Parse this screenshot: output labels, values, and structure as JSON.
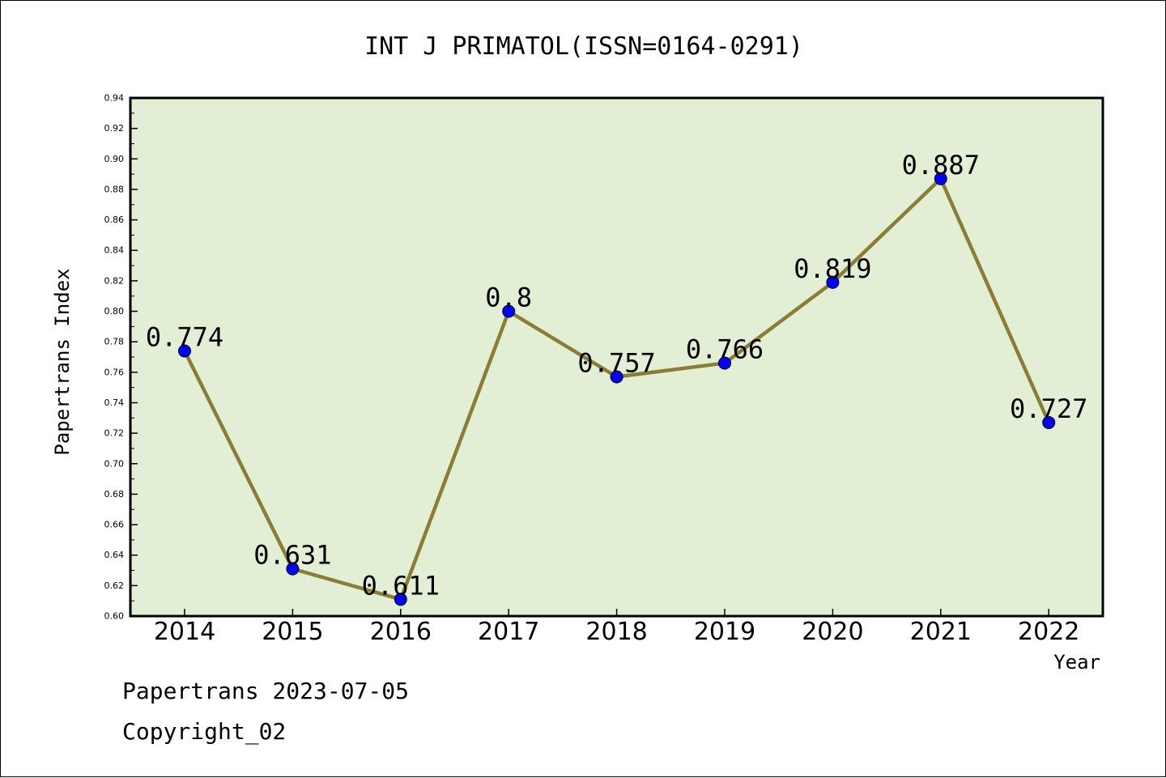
{
  "chart_data": {
    "type": "line",
    "title": "INT J PRIMATOL(ISSN=0164-0291)",
    "xlabel": "Year",
    "ylabel": "Papertrans Index",
    "x": [
      "2014",
      "2015",
      "2016",
      "2017",
      "2018",
      "2019",
      "2020",
      "2021",
      "2022"
    ],
    "series": [
      {
        "values": [
          0.774,
          0.631,
          0.611,
          0.8,
          0.757,
          0.766,
          0.819,
          0.887,
          0.727
        ],
        "labels": [
          "0.774",
          "0.631",
          "0.611",
          "0.8",
          "0.757",
          "0.766",
          "0.819",
          "0.887",
          "0.727"
        ]
      }
    ],
    "ylim": [
      0.6,
      0.94
    ],
    "yticks": [
      "0.60",
      "0.62",
      "0.64",
      "0.66",
      "0.68",
      "0.70",
      "0.72",
      "0.74",
      "0.76",
      "0.78",
      "0.80",
      "0.82",
      "0.84",
      "0.86",
      "0.88",
      "0.90",
      "0.92",
      "0.94"
    ],
    "grid": false,
    "colors": {
      "plot_background": "#e2efd4",
      "line": "#8b7d35",
      "marker": "#0000ff"
    }
  },
  "footer": {
    "line1": "Papertrans 2023-07-05",
    "line2": "Copyright_02"
  }
}
